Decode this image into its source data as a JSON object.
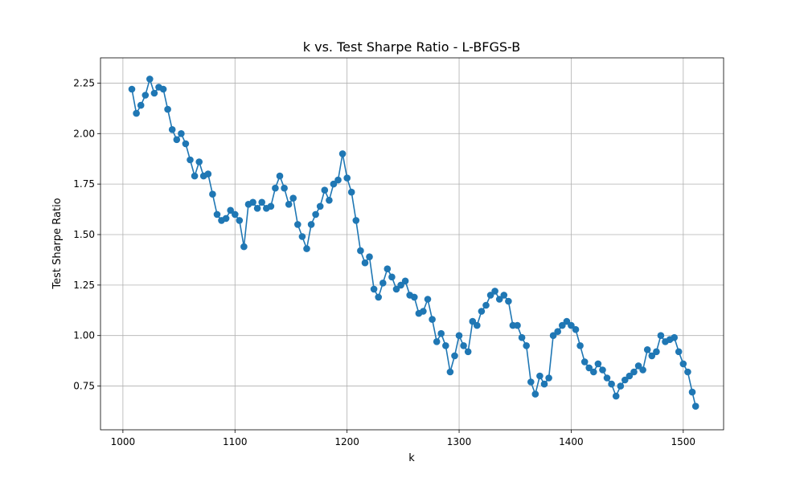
{
  "chart_data": {
    "type": "line",
    "title": "k vs. Test Sharpe Ratio - L-BFGS-B",
    "xlabel": "k",
    "ylabel": "Test Sharpe Ratio",
    "xlim": [
      980,
      1536
    ],
    "ylim": [
      0.5335,
      2.375
    ],
    "xticks": [
      1000,
      1100,
      1200,
      1300,
      1400,
      1500
    ],
    "xtick_labels": [
      "1000",
      "1100",
      "1200",
      "1300",
      "1400",
      "1500"
    ],
    "yticks": [
      0.75,
      1.0,
      1.25,
      1.5,
      1.75,
      2.0,
      2.25
    ],
    "ytick_labels": [
      "0.75",
      "1.00",
      "1.25",
      "1.50",
      "1.75",
      "2.00",
      "2.25"
    ],
    "grid": true,
    "marker": "circle",
    "color": "#1f77b4",
    "series": [
      {
        "x": [
          1008,
          1012,
          1016,
          1020,
          1024,
          1028,
          1032,
          1036,
          1040,
          1044,
          1048,
          1052,
          1056,
          1060,
          1064,
          1068,
          1072,
          1076,
          1080,
          1084,
          1088,
          1092,
          1096,
          1100,
          1104,
          1108,
          1112,
          1116,
          1120,
          1124,
          1128,
          1132,
          1136,
          1140,
          1144,
          1148,
          1152,
          1156,
          1160,
          1164,
          1168,
          1172,
          1176,
          1180,
          1184,
          1188,
          1192,
          1196,
          1200,
          1204,
          1208,
          1212,
          1216,
          1220,
          1224,
          1228,
          1232,
          1236,
          1240,
          1244,
          1248,
          1252,
          1256,
          1260,
          1264,
          1268,
          1272,
          1276,
          1280,
          1284,
          1288,
          1292,
          1296,
          1300,
          1304,
          1308,
          1312,
          1316,
          1320,
          1324,
          1328,
          1332,
          1336,
          1340,
          1344,
          1348,
          1352,
          1356,
          1360,
          1364,
          1368,
          1372,
          1376,
          1380,
          1384,
          1388,
          1392,
          1396,
          1400,
          1404,
          1408,
          1412,
          1416,
          1420,
          1424,
          1428,
          1432,
          1436,
          1440,
          1444,
          1448,
          1452,
          1456,
          1460,
          1464,
          1468,
          1472,
          1476,
          1480,
          1484,
          1488,
          1492,
          1496,
          1500,
          1504,
          1508,
          1511
        ],
        "y": [
          2.22,
          2.1,
          2.14,
          2.19,
          2.27,
          2.2,
          2.23,
          2.22,
          2.12,
          2.02,
          1.97,
          2.0,
          1.95,
          1.87,
          1.79,
          1.86,
          1.79,
          1.8,
          1.7,
          1.6,
          1.57,
          1.58,
          1.62,
          1.6,
          1.57,
          1.44,
          1.65,
          1.66,
          1.63,
          1.66,
          1.63,
          1.64,
          1.73,
          1.79,
          1.73,
          1.65,
          1.68,
          1.55,
          1.49,
          1.43,
          1.55,
          1.6,
          1.64,
          1.72,
          1.67,
          1.75,
          1.77,
          1.9,
          1.78,
          1.71,
          1.57,
          1.42,
          1.36,
          1.39,
          1.23,
          1.19,
          1.26,
          1.33,
          1.29,
          1.23,
          1.25,
          1.27,
          1.2,
          1.19,
          1.11,
          1.12,
          1.18,
          1.08,
          0.97,
          1.01,
          0.95,
          0.82,
          0.9,
          1.0,
          0.95,
          0.92,
          1.07,
          1.05,
          1.12,
          1.15,
          1.2,
          1.22,
          1.18,
          1.2,
          1.17,
          1.05,
          1.05,
          0.99,
          0.95,
          0.77,
          0.71,
          0.8,
          0.76,
          0.79,
          1.0,
          1.02,
          1.05,
          1.07,
          1.05,
          1.03,
          0.95,
          0.87,
          0.84,
          0.82,
          0.86,
          0.83,
          0.79,
          0.76,
          0.7,
          0.75,
          0.78,
          0.8,
          0.82,
          0.85,
          0.83,
          0.93,
          0.9,
          0.92,
          1.0,
          0.97,
          0.98,
          0.99,
          0.92,
          0.86,
          0.82,
          0.72,
          0.65
        ]
      }
    ]
  }
}
